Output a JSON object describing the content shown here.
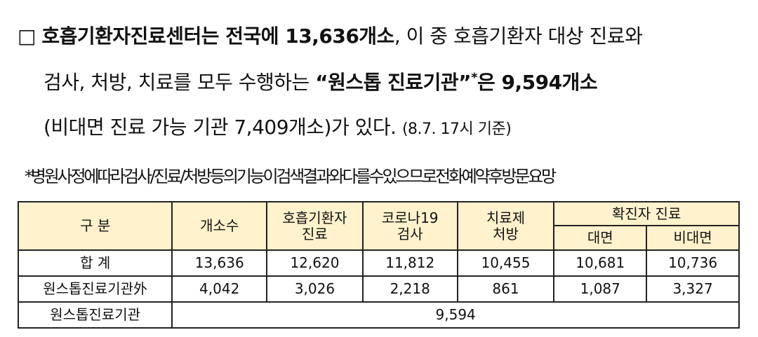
{
  "paragraph": {
    "bullet": "□",
    "line1": [
      "호흡기환자진료센터는 전국에 13,636개소",
      ", 이 중 호흡기환자 대상 진료와"
    ],
    "line2": [
      "검사, 처방, 치료를 모두 수행하는 ",
      "“원스톱 진료기관”",
      "*",
      "은 9,594개소"
    ],
    "line3": [
      "(비대면 진료 가능 기관 7,409개소)가 있다. ",
      "(8.7. 17시 기준)"
    ]
  },
  "note": "*병원사정에따라검사/진료/처방등의기능이검색결과와다를수있으므로전화예약후방문요망",
  "table": {
    "header": {
      "category": "구 분",
      "count": "개소수",
      "columns": [
        [
          "호흡기환자",
          "진료"
        ],
        [
          "코로나19",
          "검사"
        ],
        [
          "치료제",
          "처방"
        ]
      ],
      "group": "확진자 진료",
      "sub": [
        "대면",
        "비대면"
      ]
    },
    "rows": [
      [
        "합 계",
        "13,636",
        "12,620",
        "11,812",
        "10,455",
        "10,681",
        "10,736"
      ],
      [
        "원스톱진료기관外",
        "4,042",
        "3,026",
        "2,218",
        "861",
        "1,087",
        "3,327"
      ]
    ],
    "last_row": [
      "원스톱진료기관",
      "9,594"
    ]
  }
}
